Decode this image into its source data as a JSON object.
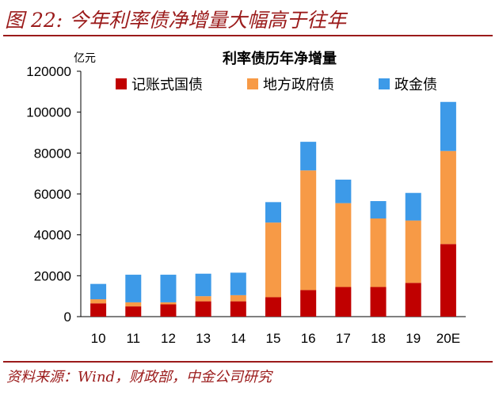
{
  "figure": {
    "title": "图 22:  今年利率债净增量大幅高于往年",
    "source": "资料来源：Wind，财政部，中金公司研究"
  },
  "chart_data": {
    "type": "bar",
    "stacked": true,
    "title": "利率债历年净增量",
    "unit_label": "亿元",
    "categories": [
      "10",
      "11",
      "12",
      "13",
      "14",
      "15",
      "16",
      "17",
      "18",
      "19",
      "20E"
    ],
    "series": [
      {
        "name": "记账式国债",
        "color": "#c00000",
        "values": [
          6500,
          5000,
          6000,
          7500,
          7500,
          9500,
          13000,
          14500,
          14500,
          16500,
          35500
        ]
      },
      {
        "name": "地方政府债",
        "color": "#f79a46",
        "values": [
          2000,
          2000,
          1000,
          2500,
          3000,
          36500,
          58500,
          41000,
          33500,
          30500,
          45500
        ]
      },
      {
        "name": "政金债",
        "color": "#3d9ae8",
        "values": [
          7500,
          13500,
          13500,
          11000,
          11000,
          10000,
          14000,
          11500,
          8500,
          13500,
          24000
        ]
      }
    ],
    "ylim": [
      0,
      120000
    ],
    "yticks": [
      0,
      20000,
      40000,
      60000,
      80000,
      100000,
      120000
    ],
    "legend_position": "top",
    "grid": false
  }
}
